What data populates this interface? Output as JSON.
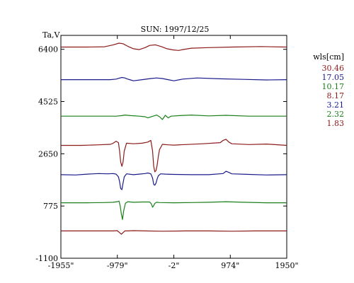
{
  "chart_data": {
    "type": "line",
    "title": "SUN: 1997/12/25",
    "ylabel": "Ta,V",
    "xlim": [
      -1955,
      1950
    ],
    "ylim": [
      -1100,
      6900
    ],
    "x_ticks": [
      "-1955\"",
      "-979\"",
      "-2\"",
      "974\"",
      "1950\""
    ],
    "x_tick_values": [
      -1955,
      -979,
      -2,
      974,
      1950
    ],
    "y_ticks": [
      6400,
      4525,
      2650,
      775,
      -1100
    ],
    "legend_title": "wls[cm]",
    "series": [
      {
        "name": "30.46",
        "color": "#8b1a1a",
        "offset": 6480,
        "x": [
          -1955,
          -1500,
          -1200,
          -1050,
          -950,
          -880,
          -800,
          -700,
          -600,
          -500,
          -420,
          -320,
          -220,
          -120,
          -20,
          80,
          150,
          300,
          600,
          1000,
          1500,
          1950
        ],
        "y": [
          0,
          0,
          10,
          80,
          140,
          120,
          30,
          -60,
          -90,
          -20,
          60,
          80,
          20,
          -60,
          -100,
          -120,
          -90,
          -40,
          -20,
          0,
          20,
          0
        ]
      },
      {
        "name": "17.05",
        "color": "#1a1a8b",
        "offset": 5310,
        "x": [
          -1955,
          -1300,
          -1100,
          -1000,
          -950,
          -900,
          -850,
          -800,
          -750,
          -700,
          -550,
          -400,
          -300,
          -200,
          -100,
          0,
          150,
          400,
          800,
          1200,
          1600,
          1950
        ],
        "y": [
          0,
          0,
          0,
          20,
          50,
          80,
          60,
          20,
          -10,
          -40,
          0,
          40,
          60,
          40,
          0,
          -40,
          20,
          60,
          30,
          10,
          -10,
          0
        ]
      },
      {
        "name": "10.17",
        "color": "#1a7f1a",
        "offset": 4000,
        "x": [
          -1955,
          -1400,
          -1200,
          -1000,
          -900,
          -850,
          -750,
          -600,
          -500,
          -450,
          -300,
          -250,
          -200,
          -150,
          -100,
          -50,
          100,
          300,
          600,
          900,
          1300,
          1700,
          1950
        ],
        "y": [
          0,
          0,
          0,
          0,
          20,
          40,
          20,
          0,
          -20,
          -60,
          40,
          -20,
          -120,
          30,
          -60,
          0,
          20,
          40,
          10,
          30,
          0,
          0,
          0
        ]
      },
      {
        "name": "8.17",
        "color": "#8b1a1a",
        "offset": 2950,
        "x": [
          -1955,
          -1600,
          -1300,
          -1100,
          -1050,
          -1000,
          -960,
          -940,
          -920,
          -900,
          -880,
          -860,
          -820,
          -700,
          -550,
          -450,
          -400,
          -370,
          -350,
          -330,
          -310,
          -290,
          -270,
          -250,
          -200,
          -100,
          0,
          200,
          500,
          800,
          850,
          900,
          950,
          1000,
          1300,
          1600,
          1950
        ],
        "y": [
          0,
          0,
          20,
          40,
          80,
          150,
          100,
          -200,
          -600,
          -750,
          -600,
          -200,
          80,
          60,
          80,
          120,
          180,
          -200,
          -750,
          -950,
          -900,
          -700,
          -400,
          -150,
          40,
          20,
          10,
          30,
          60,
          100,
          180,
          220,
          120,
          60,
          30,
          50,
          0
        ]
      },
      {
        "name": "3.21",
        "color": "#1a1a8b",
        "offset": 1900,
        "x": [
          -1955,
          -1700,
          -1500,
          -1300,
          -1150,
          -1050,
          -1000,
          -960,
          -940,
          -920,
          -900,
          -880,
          -860,
          -820,
          -700,
          -600,
          -500,
          -450,
          -400,
          -370,
          -350,
          -330,
          -310,
          -290,
          -270,
          -230,
          -150,
          0,
          300,
          600,
          850,
          900,
          950,
          1000,
          1300,
          1600,
          1950
        ],
        "y": [
          0,
          -10,
          20,
          40,
          30,
          40,
          20,
          -80,
          -250,
          -500,
          -540,
          -300,
          -80,
          30,
          0,
          20,
          40,
          60,
          30,
          -120,
          -350,
          -380,
          -300,
          -150,
          -40,
          30,
          20,
          10,
          0,
          0,
          40,
          120,
          80,
          30,
          10,
          -10,
          0
        ]
      },
      {
        "name": "2.32",
        "color": "#1a7f1a",
        "offset": 890,
        "x": [
          -1955,
          -1500,
          -1200,
          -1050,
          -980,
          -950,
          -930,
          -910,
          -890,
          -870,
          -840,
          -800,
          -700,
          -550,
          -420,
          -390,
          -370,
          -350,
          -330,
          -300,
          -250,
          0,
          300,
          600,
          900,
          1200,
          1600,
          1950
        ],
        "y": [
          0,
          0,
          10,
          20,
          40,
          60,
          -100,
          -400,
          -600,
          -300,
          -20,
          40,
          20,
          30,
          30,
          -40,
          -160,
          -100,
          -20,
          20,
          10,
          0,
          10,
          20,
          40,
          20,
          0,
          0
        ]
      },
      {
        "name": "1.83",
        "color": "#8b1a1a",
        "offset": -120,
        "x": [
          -1955,
          -1500,
          -1200,
          -1050,
          -980,
          -940,
          -910,
          -880,
          -850,
          -800,
          -700,
          -500,
          -200,
          200,
          600,
          1000,
          1400,
          1950
        ],
        "y": [
          0,
          0,
          0,
          0,
          10,
          -60,
          -120,
          -60,
          0,
          0,
          10,
          0,
          -10,
          0,
          0,
          -10,
          0,
          0
        ]
      }
    ]
  }
}
